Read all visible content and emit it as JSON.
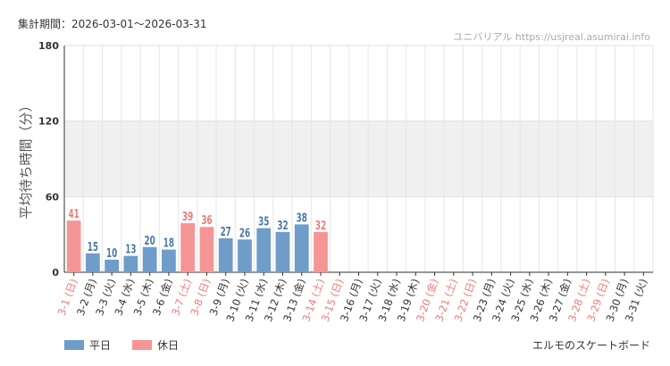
{
  "header": {
    "period": "集計期間：2026-03-01〜2026-03-31",
    "source": "ユニバリアル https://usjreal.asumirai.info"
  },
  "footer": {
    "attraction": "エルモのスケートボード"
  },
  "colors": {
    "weekday": "#6f9cc8",
    "holiday": "#f69595",
    "weekday_label": "#4a78a8",
    "holiday_label": "#f07a7a",
    "band": "#f0f0f0"
  },
  "chart_data": {
    "type": "bar",
    "ylabel": "平均待ち時間（分）",
    "ylim": [
      0,
      180
    ],
    "yticks": [
      0,
      60,
      120,
      180
    ],
    "shaded_band": [
      60,
      120
    ],
    "grid": true,
    "legend_position": "bottom-left",
    "categories": [
      "3-1 (日)",
      "3-2 (月)",
      "3-3 (火)",
      "3-4 (水)",
      "3-5 (木)",
      "3-6 (金)",
      "3-7 (土)",
      "3-8 (日)",
      "3-9 (月)",
      "3-10 (火)",
      "3-11 (水)",
      "3-12 (木)",
      "3-13 (金)",
      "3-14 (土)",
      "3-15 (日)",
      "3-16 (月)",
      "3-17 (火)",
      "3-18 (水)",
      "3-19 (木)",
      "3-20 (金)",
      "3-21 (土)",
      "3-22 (日)",
      "3-23 (月)",
      "3-24 (火)",
      "3-25 (水)",
      "3-26 (木)",
      "3-27 (金)",
      "3-28 (土)",
      "3-29 (日)",
      "3-30 (月)",
      "3-31 (火)"
    ],
    "holiday": [
      true,
      false,
      false,
      false,
      false,
      false,
      true,
      true,
      false,
      false,
      false,
      false,
      false,
      true,
      true,
      false,
      false,
      false,
      false,
      true,
      true,
      true,
      false,
      false,
      false,
      false,
      false,
      true,
      true,
      false,
      false
    ],
    "values": [
      41,
      15,
      10,
      13,
      20,
      18,
      39,
      36,
      27,
      26,
      35,
      32,
      38,
      32,
      null,
      null,
      null,
      null,
      null,
      null,
      null,
      null,
      null,
      null,
      null,
      null,
      null,
      null,
      null,
      null,
      null
    ],
    "series": [
      {
        "name": "平日",
        "color": "#6f9cc8"
      },
      {
        "name": "休日",
        "color": "#f69595"
      }
    ]
  }
}
